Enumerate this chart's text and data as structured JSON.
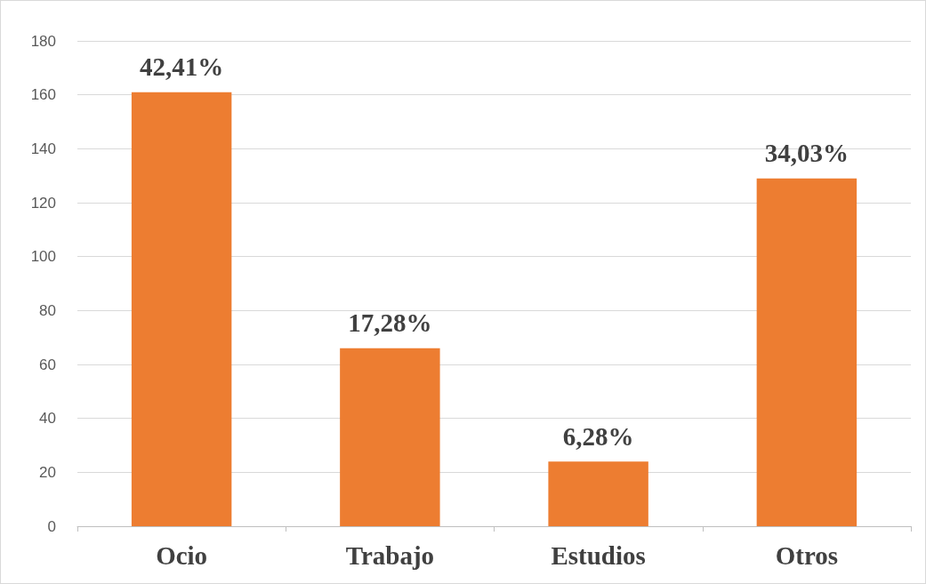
{
  "chart_data": {
    "type": "bar",
    "categories": [
      "Ocio",
      "Trabajo",
      "Estudios",
      "Otros"
    ],
    "values": [
      161,
      66,
      24,
      129
    ],
    "color": "#ed7d31",
    "annotations": [
      {
        "text": "42,41%",
        "x": "Ocio",
        "y": 161
      },
      {
        "text": "17,28%",
        "x": "Trabajo",
        "y": 66
      },
      {
        "text": "6,28%",
        "x": "Estudios",
        "y": 24
      },
      {
        "text": "34,03%",
        "x": "Otros",
        "y": 129
      }
    ],
    "ylim": [
      0,
      180
    ],
    "yticks": [
      0,
      20,
      40,
      60,
      80,
      100,
      120,
      140,
      160,
      180
    ],
    "grid": "y"
  }
}
